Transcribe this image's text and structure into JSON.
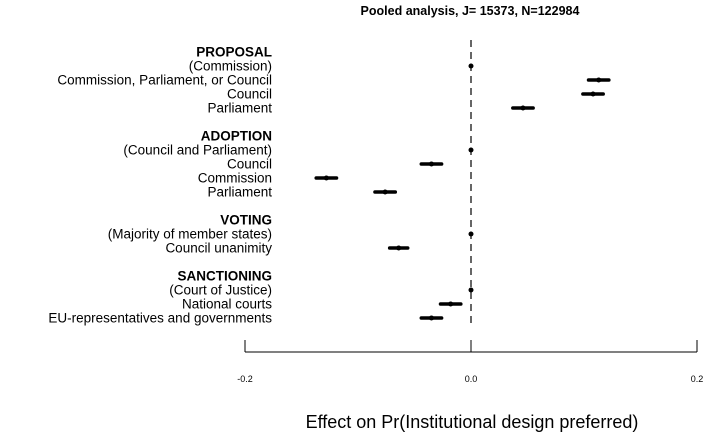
{
  "chart_data": {
    "type": "scatter",
    "title": "Pooled analysis, J= 15373, N=122984",
    "xlabel": "Effect on Pr(Institutional design preferred)",
    "ylabel": "",
    "xlim": [
      -0.2,
      0.2
    ],
    "x_ticks": [
      "-0.2",
      "0.0",
      "0.2"
    ],
    "reference_line": 0.0,
    "grid": false,
    "groups": [
      {
        "name": "PROPOSAL",
        "rows": [
          {
            "label": "(Commission)",
            "estimate": 0.0,
            "ci": [
              0.0,
              0.0
            ],
            "baseline": true
          },
          {
            "label": "Commission, Parliament, or Council",
            "estimate": 0.113,
            "ci": [
              0.104,
              0.122
            ]
          },
          {
            "label": "Council",
            "estimate": 0.108,
            "ci": [
              0.099,
              0.117
            ]
          },
          {
            "label": "Parliament",
            "estimate": 0.046,
            "ci": [
              0.037,
              0.055
            ]
          }
        ]
      },
      {
        "name": "ADOPTION",
        "rows": [
          {
            "label": "(Council and Parliament)",
            "estimate": 0.0,
            "ci": [
              0.0,
              0.0
            ],
            "baseline": true
          },
          {
            "label": "Council",
            "estimate": -0.035,
            "ci": [
              -0.044,
              -0.026
            ]
          },
          {
            "label": "Commission",
            "estimate": -0.128,
            "ci": [
              -0.137,
              -0.119
            ]
          },
          {
            "label": "Parliament",
            "estimate": -0.076,
            "ci": [
              -0.085,
              -0.067
            ]
          }
        ]
      },
      {
        "name": "VOTING",
        "rows": [
          {
            "label": "(Majority of member states)",
            "estimate": 0.0,
            "ci": [
              0.0,
              0.0
            ],
            "baseline": true
          },
          {
            "label": "Council unanimity",
            "estimate": -0.064,
            "ci": [
              -0.072,
              -0.056
            ]
          }
        ]
      },
      {
        "name": "SANCTIONING",
        "rows": [
          {
            "label": "(Court of Justice)",
            "estimate": 0.0,
            "ci": [
              0.0,
              0.0
            ],
            "baseline": true
          },
          {
            "label": "National courts",
            "estimate": -0.018,
            "ci": [
              -0.027,
              -0.009
            ]
          },
          {
            "label": "EU-representatives and governments",
            "estimate": -0.035,
            "ci": [
              -0.044,
              -0.026
            ]
          }
        ]
      }
    ]
  }
}
